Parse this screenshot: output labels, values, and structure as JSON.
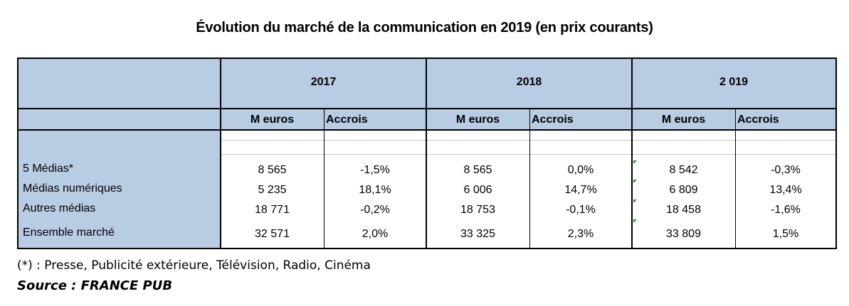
{
  "title": "Évolution du marché de la communication en 2019 (en prix courants)",
  "table": {
    "years": [
      "2017",
      "2018",
      "2 019"
    ],
    "sub_headers": {
      "value": "M euros",
      "growth": "Accrois"
    },
    "rows": [
      {
        "label": "5 Médias*",
        "values": [
          "8 565",
          "-1,5%",
          "8 565",
          "0,0%",
          "8 542",
          "-0,3%"
        ]
      },
      {
        "label": "Médias numériques",
        "values": [
          "5 235",
          "18,1%",
          "6 006",
          "14,7%",
          "6 809",
          "13,4%"
        ]
      },
      {
        "label": "Autres médias",
        "values": [
          "18 771",
          "-0,2%",
          "18 753",
          "-0,1%",
          "18 458",
          "-1,6%"
        ]
      },
      {
        "label": "Ensemble marché",
        "values": [
          "32 571",
          "2,0%",
          "33 325",
          "2,3%",
          "33 809",
          "1,5%"
        ]
      }
    ]
  },
  "footnote": "(*) : Presse, Publicité extérieure, Télévision, Radio, Cinéma",
  "source": "Source : FRANCE PUB",
  "colors": {
    "header_fill": "#b8cce4",
    "flag": "#2e8b2e"
  }
}
